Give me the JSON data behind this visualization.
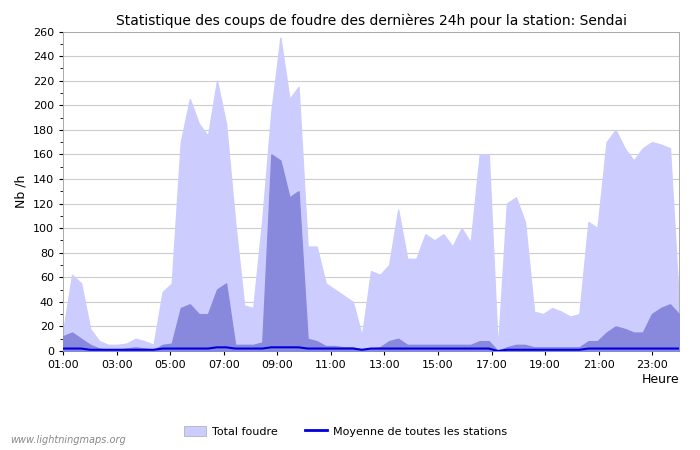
{
  "title": "Statistique des coups de foudre des dernières 24h pour la station: Sendai",
  "ylabel": "Nb /h",
  "xlabel": "Heure",
  "xlim": [
    0,
    23
  ],
  "ylim": [
    0,
    260
  ],
  "yticks": [
    0,
    20,
    40,
    60,
    80,
    100,
    120,
    140,
    160,
    180,
    200,
    220,
    240,
    260
  ],
  "xtick_labels": [
    "01:00",
    "03:00",
    "05:00",
    "07:00",
    "09:00",
    "11:00",
    "13:00",
    "15:00",
    "17:00",
    "19:00",
    "21:00",
    "23:00"
  ],
  "xtick_positions": [
    0,
    2,
    4,
    6,
    8,
    10,
    12,
    14,
    16,
    18,
    20,
    22
  ],
  "color_total": "#ccccff",
  "color_detected": "#8888dd",
  "color_mean": "#0000dd",
  "background_color": "#ffffff",
  "grid_color": "#cccccc",
  "watermark": "www.lightningmaps.org",
  "legend_total": "Total foudre",
  "legend_mean": "Moyenne de toutes les stations",
  "total_foudre": [
    15,
    62,
    55,
    18,
    8,
    5,
    5,
    6,
    10,
    8,
    5,
    48,
    55,
    170,
    205,
    185,
    175,
    220,
    185,
    105,
    37,
    35,
    107,
    195,
    255,
    205,
    215,
    85,
    85,
    55,
    50,
    45,
    40,
    12,
    65,
    62,
    70,
    115,
    75,
    75,
    95,
    90,
    95,
    85,
    100,
    88,
    160,
    160,
    0,
    120,
    125,
    105,
    32,
    30,
    35,
    32,
    28,
    30,
    105,
    100,
    170,
    180,
    165,
    155,
    165,
    170,
    168,
    165,
    38
  ],
  "detected_foudre": [
    12,
    15,
    10,
    5,
    2,
    1,
    1,
    2,
    3,
    2,
    1,
    5,
    6,
    35,
    38,
    30,
    30,
    50,
    55,
    5,
    5,
    5,
    7,
    160,
    155,
    125,
    130,
    10,
    8,
    4,
    4,
    3,
    3,
    1,
    2,
    3,
    8,
    10,
    5,
    5,
    5,
    5,
    5,
    5,
    5,
    5,
    8,
    8,
    0,
    3,
    5,
    5,
    3,
    3,
    3,
    3,
    3,
    3,
    8,
    8,
    15,
    20,
    18,
    15,
    15,
    30,
    35,
    38,
    30
  ],
  "mean_line": [
    2,
    2,
    2,
    1,
    1,
    1,
    1,
    1,
    1,
    1,
    1,
    2,
    2,
    2,
    2,
    2,
    2,
    3,
    3,
    2,
    2,
    2,
    2,
    3,
    3,
    3,
    3,
    2,
    2,
    2,
    2,
    2,
    2,
    1,
    2,
    2,
    2,
    2,
    2,
    2,
    2,
    2,
    2,
    2,
    2,
    2,
    2,
    2,
    0,
    1,
    1,
    1,
    1,
    1,
    1,
    1,
    1,
    1,
    2,
    2,
    2,
    2,
    2,
    2,
    2,
    2,
    2,
    2,
    2
  ]
}
